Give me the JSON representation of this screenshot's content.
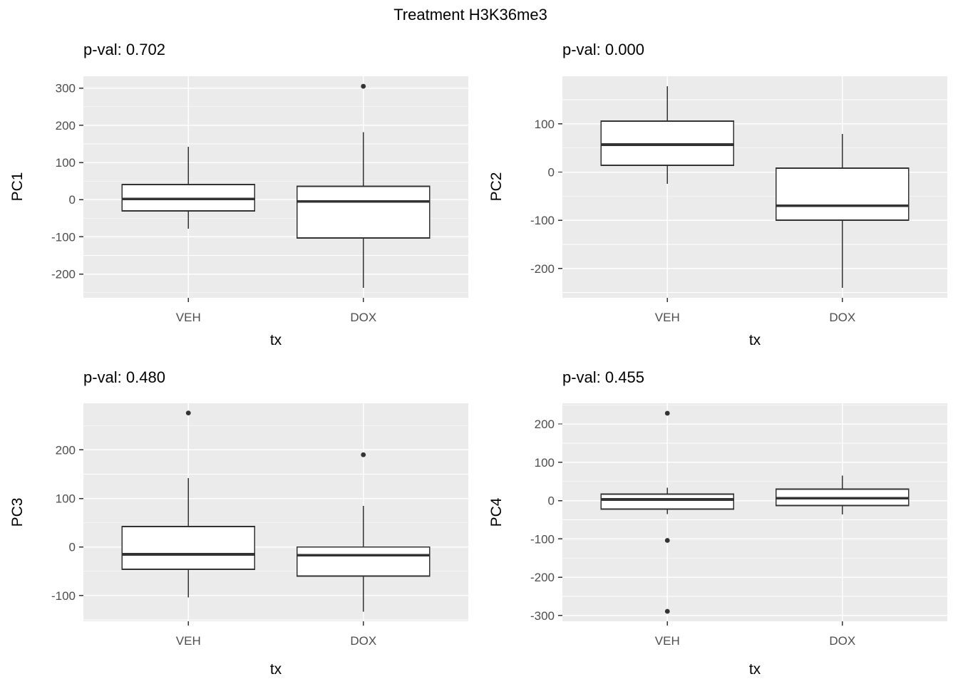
{
  "title": "Treatment H3K36me3",
  "colors": {
    "panel_bg": "#EBEBEB",
    "grid_major": "#FFFFFF",
    "grid_minor": "#FFFFFF",
    "box_stroke": "#333333",
    "box_fill": "#FFFFFF",
    "median": "#333333",
    "outlier": "#333333",
    "axis_text": "#4D4D4D",
    "tick_mark": "#333333",
    "title_text": "#000000"
  },
  "chart_data": [
    {
      "type": "boxplot",
      "subtitle": "p-val: 0.702",
      "ylabel": "PC1",
      "xlabel": "tx",
      "categories": [
        "VEH",
        "DOX"
      ],
      "yticks": [
        300,
        200,
        100,
        0,
        -100,
        -200
      ],
      "minor_ticks": [
        250,
        150,
        50,
        -50,
        -150,
        -250
      ],
      "ylim": [
        -264,
        332
      ],
      "grid": true,
      "legend": "none",
      "boxes": [
        {
          "category": "VEH",
          "whisker_low": -78,
          "q1": -30,
          "median": 2,
          "q3": 41,
          "whisker_high": 142,
          "outliers": []
        },
        {
          "category": "DOX",
          "whisker_low": -237,
          "q1": -103,
          "median": -5,
          "q3": 36,
          "whisker_high": 182,
          "outliers": [
            305
          ]
        }
      ]
    },
    {
      "type": "boxplot",
      "subtitle": "p-val: 0.000",
      "ylabel": "PC2",
      "xlabel": "tx",
      "categories": [
        "VEH",
        "DOX"
      ],
      "yticks": [
        100,
        0,
        -100,
        -200
      ],
      "minor_ticks": [
        150,
        50,
        -50,
        -150,
        -250
      ],
      "ylim": [
        -261,
        199
      ],
      "grid": true,
      "legend": "none",
      "boxes": [
        {
          "category": "VEH",
          "whisker_low": -24,
          "q1": 14,
          "median": 57,
          "q3": 106,
          "whisker_high": 178,
          "outliers": []
        },
        {
          "category": "DOX",
          "whisker_low": -240,
          "q1": -100,
          "median": -70,
          "q3": 8,
          "whisker_high": 79,
          "outliers": []
        }
      ]
    },
    {
      "type": "boxplot",
      "subtitle": "p-val: 0.480",
      "ylabel": "PC3",
      "xlabel": "tx",
      "categories": [
        "VEH",
        "DOX"
      ],
      "yticks": [
        200,
        100,
        0,
        -100
      ],
      "minor_ticks": [
        250,
        150,
        50,
        -50,
        -150
      ],
      "ylim": [
        -153,
        296
      ],
      "grid": true,
      "legend": "none",
      "boxes": [
        {
          "category": "VEH",
          "whisker_low": -104,
          "q1": -46,
          "median": -15,
          "q3": 42,
          "whisker_high": 142,
          "outliers": [
            276
          ]
        },
        {
          "category": "DOX",
          "whisker_low": -133,
          "q1": -60,
          "median": -17,
          "q3": 0,
          "whisker_high": 85,
          "outliers": [
            190
          ]
        }
      ]
    },
    {
      "type": "boxplot",
      "subtitle": "p-val: 0.455",
      "ylabel": "PC4",
      "xlabel": "tx",
      "categories": [
        "VEH",
        "DOX"
      ],
      "yticks": [
        200,
        100,
        0,
        -100,
        -200,
        -300
      ],
      "minor_ticks": [
        250,
        150,
        50,
        -50,
        -150,
        -250
      ],
      "ylim": [
        -315,
        254
      ],
      "grid": true,
      "legend": "none",
      "boxes": [
        {
          "category": "VEH",
          "whisker_low": -35,
          "q1": -22,
          "median": 3,
          "q3": 17,
          "whisker_high": 34,
          "outliers": [
            228,
            -104,
            -289
          ]
        },
        {
          "category": "DOX",
          "whisker_low": -36,
          "q1": -13,
          "median": 6,
          "q3": 30,
          "whisker_high": 65,
          "outliers": []
        }
      ]
    }
  ]
}
